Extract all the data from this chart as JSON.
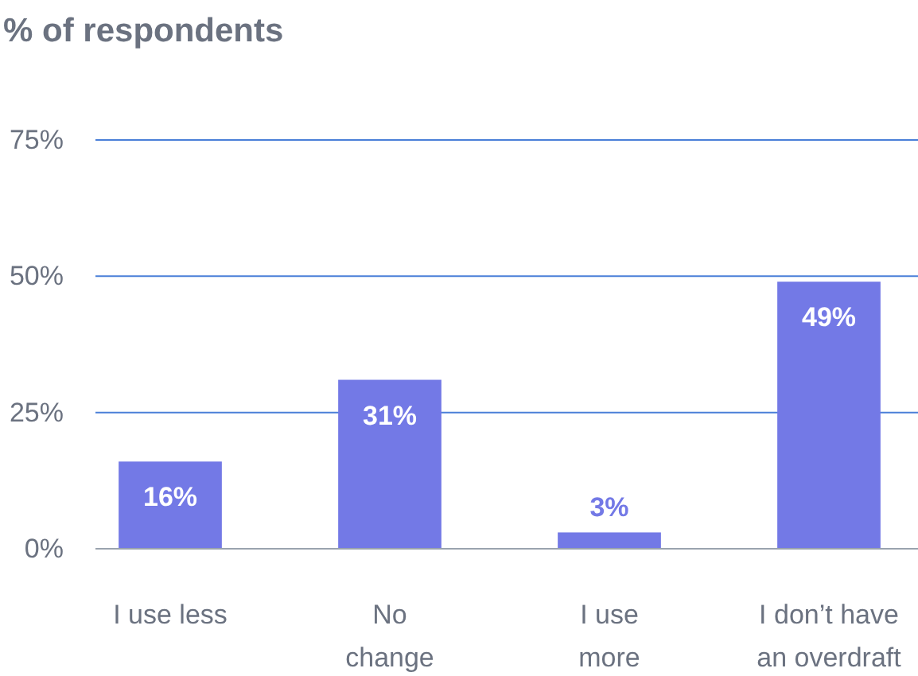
{
  "chart_data": {
    "type": "bar",
    "title": "% of respondents",
    "categories": [
      "I use less",
      "No\nchange",
      "I use\nmore",
      "I don’t have\nan overdraft"
    ],
    "values": [
      16,
      31,
      3,
      49
    ],
    "value_labels": [
      "16%",
      "31%",
      "3%",
      "49%"
    ],
    "color": "#7379e6",
    "ylim": [
      0,
      75
    ],
    "yticks": [
      {
        "value": 0,
        "label": "0%"
      },
      {
        "value": 25,
        "label": "25%"
      },
      {
        "value": 50,
        "label": "50%"
      },
      {
        "value": 75,
        "label": "75%"
      }
    ],
    "grid": "y"
  }
}
